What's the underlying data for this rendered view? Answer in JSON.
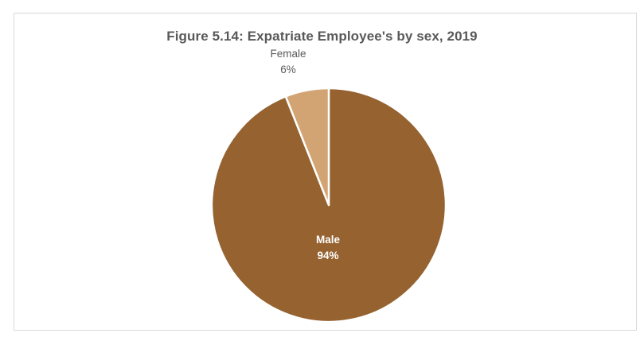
{
  "chart_data": {
    "type": "pie",
    "title": "Figure 5.14: Expatriate Employee's by sex, 2019",
    "slices": [
      {
        "label": "Male",
        "percent_label": "94%",
        "value": 94,
        "color": "#956230",
        "label_color": "#ffffff",
        "label_weight": "bold"
      },
      {
        "label": "Female",
        "percent_label": "6%",
        "value": 6,
        "color": "#d3a473",
        "label_color": "#595959",
        "label_weight": "normal"
      }
    ],
    "legend": "none",
    "data_labels": "category and percentage"
  }
}
